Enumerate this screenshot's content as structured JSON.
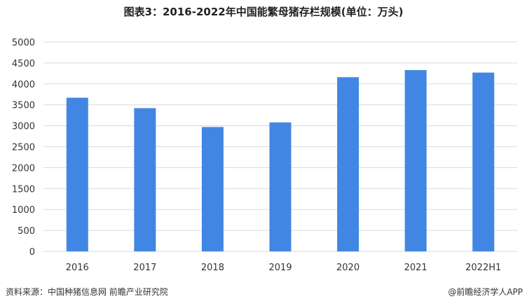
{
  "title": "图表3：2016-2022年中国能繁母猪存栏规模(单位：万头)",
  "footer": {
    "source": "资料来源：中国种猪信息网 前瞻产业研究院",
    "brand": "@前瞻经济学人APP"
  },
  "colors": {
    "bar": "#4286E3",
    "grid": "#D9D9D9"
  },
  "chart_data": {
    "type": "bar",
    "title": "图表3：2016-2022年中国能繁母猪存栏规模(单位：万头)",
    "categories": [
      "2016",
      "2017",
      "2018",
      "2019",
      "2020",
      "2021",
      "2022H1"
    ],
    "values": [
      3670,
      3420,
      2970,
      3080,
      4160,
      4330,
      4270
    ],
    "ylim": [
      0,
      5000
    ],
    "yticks": [
      0,
      500,
      1000,
      1500,
      2000,
      2500,
      3000,
      3500,
      4000,
      4500,
      5000
    ],
    "xlabel": "",
    "ylabel": "",
    "grid": true,
    "legend": "none"
  }
}
